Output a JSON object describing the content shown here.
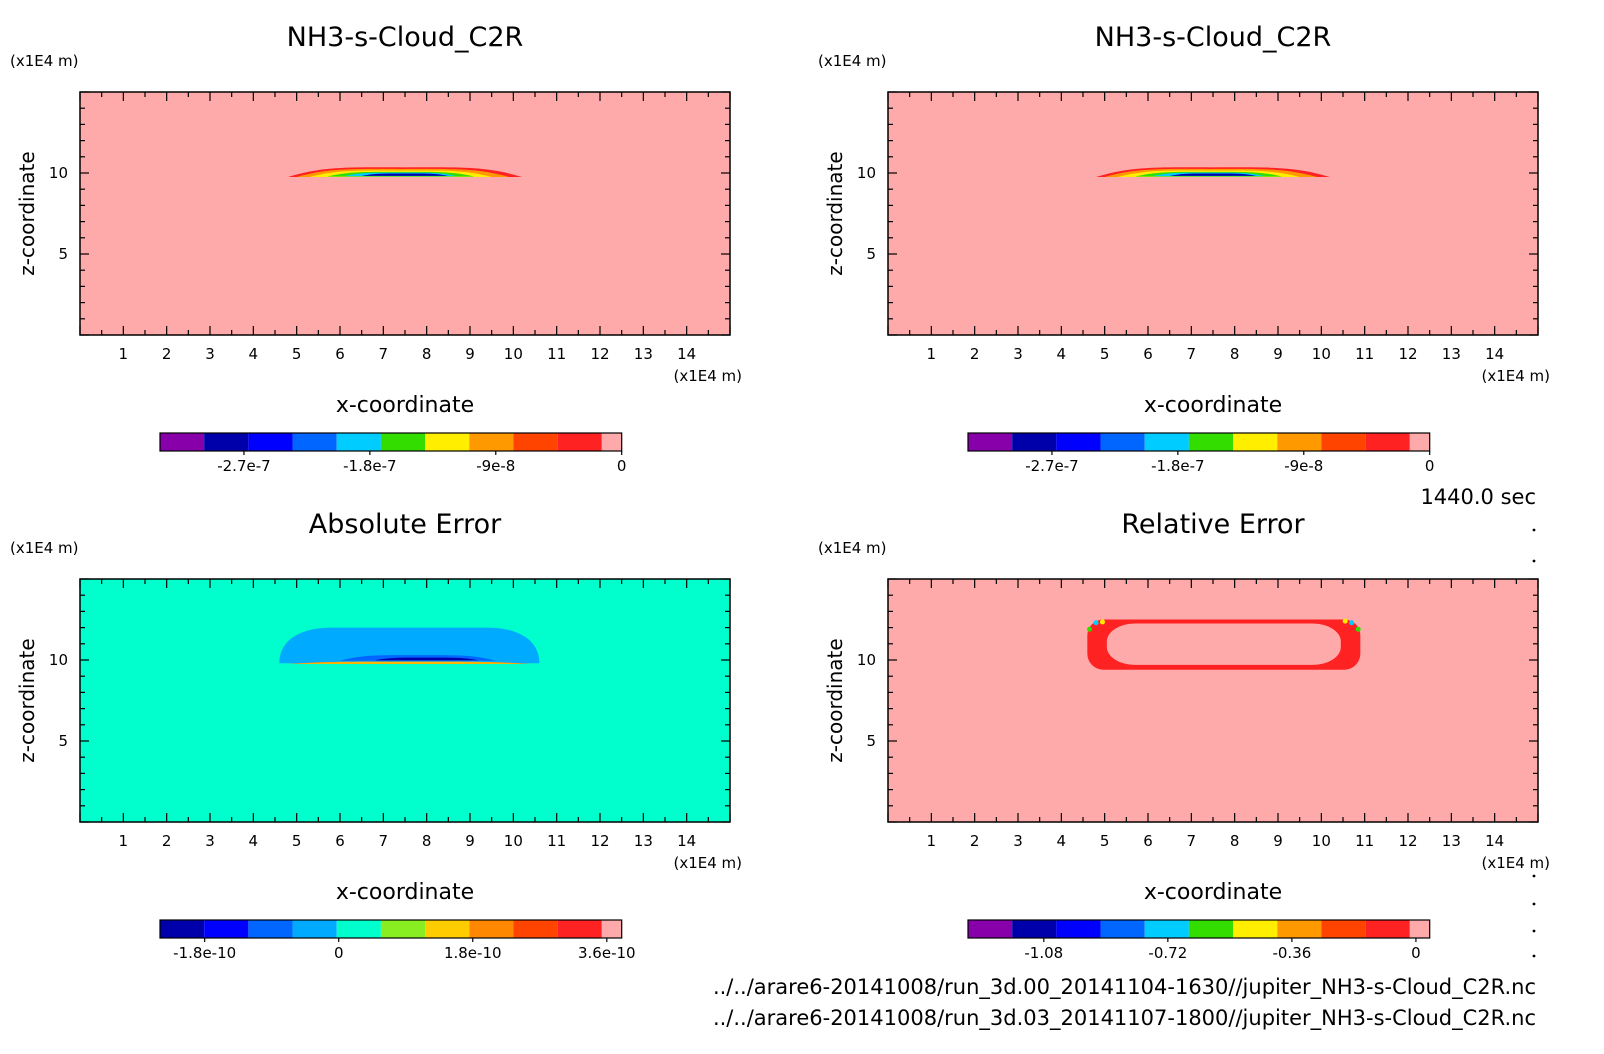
{
  "time_label": "1440.0 sec",
  "files": [
    "../../arare6-20141008/run_3d.00_20141104-1630//jupiter_NH3-s-Cloud_C2R.nc",
    "../../arare6-20141008/run_3d.03_20141107-1800//jupiter_NH3-s-Cloud_C2R.nc"
  ],
  "chart_data": [
    {
      "type": "heatmap",
      "title": "NH3-s-Cloud_C2R",
      "xlabel": "x-coordinate",
      "ylabel": "z-coordinate",
      "x_unit": "(x1E4 m)",
      "y_unit": "(x1E4 m)",
      "xlim": [
        0,
        15
      ],
      "ylim": [
        0,
        15
      ],
      "xticks": [
        1,
        2,
        3,
        4,
        5,
        6,
        7,
        8,
        9,
        10,
        11,
        12,
        13,
        14
      ],
      "yticks": [
        5,
        10
      ],
      "background_color": "#ffaaaa",
      "colorbar": {
        "colors": [
          "#8800aa",
          "#0000aa",
          "#0000ff",
          "#0066ff",
          "#00ccff",
          "#33dd00",
          "#ffee00",
          "#ff9900",
          "#ff4400",
          "#ff2222",
          "#ffaaaa"
        ],
        "ticks": [
          {
            "value": -2.7e-07,
            "label": "-2.7e-7"
          },
          {
            "value": -1.8e-07,
            "label": "-1.8e-7"
          },
          {
            "value": -9e-08,
            "label": "-9e-8"
          },
          {
            "value": 0,
            "label": "0"
          }
        ],
        "range": [
          -3.3e-07,
          0
        ]
      },
      "features": [
        {
          "kind": "band",
          "x": [
            4.8,
            10.2
          ],
          "z": [
            9.75,
            10.35
          ],
          "color": "#ff2222"
        },
        {
          "kind": "band",
          "x": [
            5.0,
            9.9
          ],
          "z": [
            9.75,
            10.25
          ],
          "color": "#ff9900"
        },
        {
          "kind": "band",
          "x": [
            5.3,
            9.5
          ],
          "z": [
            9.75,
            10.15
          ],
          "color": "#ffee00"
        },
        {
          "kind": "band",
          "x": [
            5.7,
            9.1
          ],
          "z": [
            9.78,
            10.07
          ],
          "color": "#33dd00"
        },
        {
          "kind": "band",
          "x": [
            6.1,
            8.7
          ],
          "z": [
            9.8,
            10.02
          ],
          "color": "#00ccff"
        },
        {
          "kind": "band",
          "x": [
            6.5,
            8.5
          ],
          "z": [
            9.82,
            9.97
          ],
          "color": "#0000aa"
        }
      ]
    },
    {
      "type": "heatmap",
      "title": "NH3-s-Cloud_C2R",
      "xlabel": "x-coordinate",
      "ylabel": "z-coordinate",
      "x_unit": "(x1E4 m)",
      "y_unit": "(x1E4 m)",
      "xlim": [
        0,
        15
      ],
      "ylim": [
        0,
        15
      ],
      "xticks": [
        1,
        2,
        3,
        4,
        5,
        6,
        7,
        8,
        9,
        10,
        11,
        12,
        13,
        14
      ],
      "yticks": [
        5,
        10
      ],
      "background_color": "#ffaaaa",
      "colorbar": {
        "colors": [
          "#8800aa",
          "#0000aa",
          "#0000ff",
          "#0066ff",
          "#00ccff",
          "#33dd00",
          "#ffee00",
          "#ff9900",
          "#ff4400",
          "#ff2222",
          "#ffaaaa"
        ],
        "ticks": [
          {
            "value": -2.7e-07,
            "label": "-2.7e-7"
          },
          {
            "value": -1.8e-07,
            "label": "-1.8e-7"
          },
          {
            "value": -9e-08,
            "label": "-9e-8"
          },
          {
            "value": 0,
            "label": "0"
          }
        ],
        "range": [
          -3.3e-07,
          0
        ]
      },
      "features": [
        {
          "kind": "band",
          "x": [
            4.8,
            10.2
          ],
          "z": [
            9.75,
            10.35
          ],
          "color": "#ff2222"
        },
        {
          "kind": "band",
          "x": [
            5.0,
            9.9
          ],
          "z": [
            9.75,
            10.25
          ],
          "color": "#ff9900"
        },
        {
          "kind": "band",
          "x": [
            5.3,
            9.5
          ],
          "z": [
            9.75,
            10.15
          ],
          "color": "#ffee00"
        },
        {
          "kind": "band",
          "x": [
            5.7,
            9.1
          ],
          "z": [
            9.78,
            10.07
          ],
          "color": "#33dd00"
        },
        {
          "kind": "band",
          "x": [
            6.1,
            8.7
          ],
          "z": [
            9.8,
            10.02
          ],
          "color": "#00ccff"
        },
        {
          "kind": "band",
          "x": [
            6.5,
            8.5
          ],
          "z": [
            9.82,
            9.97
          ],
          "color": "#0000aa"
        }
      ]
    },
    {
      "type": "heatmap",
      "title": "Absolute Error",
      "xlabel": "x-coordinate",
      "ylabel": "z-coordinate",
      "x_unit": "(x1E4 m)",
      "y_unit": "(x1E4 m)",
      "xlim": [
        0,
        15
      ],
      "ylim": [
        0,
        15
      ],
      "xticks": [
        1,
        2,
        3,
        4,
        5,
        6,
        7,
        8,
        9,
        10,
        11,
        12,
        13,
        14
      ],
      "yticks": [
        5,
        10
      ],
      "background_color": "#00ffcc",
      "colorbar": {
        "colors": [
          "#0000aa",
          "#0000ff",
          "#0066ff",
          "#00aaff",
          "#00ffcc",
          "#88ee22",
          "#ffcc00",
          "#ff8800",
          "#ff4400",
          "#ff2222",
          "#ffaaaa"
        ],
        "ticks": [
          {
            "value": -1.8e-10,
            "label": "-1.8e-10"
          },
          {
            "value": 0,
            "label": "0"
          },
          {
            "value": 1.8e-10,
            "label": "1.8e-10"
          },
          {
            "value": 3.6e-10,
            "label": "3.6e-10"
          }
        ],
        "range": [
          -2.4e-10,
          3.8e-10
        ]
      },
      "features": [
        {
          "kind": "dome",
          "x": [
            4.6,
            10.6
          ],
          "z": [
            9.8,
            12.0
          ],
          "color": "#00aaff"
        },
        {
          "kind": "band",
          "x": [
            6.0,
            9.6
          ],
          "z": [
            9.95,
            10.3
          ],
          "color": "#0066ff"
        },
        {
          "kind": "band",
          "x": [
            6.8,
            9.2
          ],
          "z": [
            9.98,
            10.15
          ],
          "color": "#0000aa"
        },
        {
          "kind": "band",
          "x": [
            4.8,
            10.4
          ],
          "z": [
            9.75,
            9.9
          ],
          "color": "#ff8800"
        },
        {
          "kind": "band",
          "x": [
            5.0,
            10.2
          ],
          "z": [
            9.78,
            9.86
          ],
          "color": "#ffcc00"
        }
      ]
    },
    {
      "type": "heatmap",
      "title": "Relative Error",
      "xlabel": "x-coordinate",
      "ylabel": "z-coordinate",
      "x_unit": "(x1E4 m)",
      "y_unit": "(x1E4 m)",
      "xlim": [
        0,
        15
      ],
      "ylim": [
        0,
        15
      ],
      "xticks": [
        1,
        2,
        3,
        4,
        5,
        6,
        7,
        8,
        9,
        10,
        11,
        12,
        13,
        14
      ],
      "yticks": [
        5,
        10
      ],
      "background_color": "#ffaaaa",
      "colorbar": {
        "colors": [
          "#8800aa",
          "#0000aa",
          "#0000ff",
          "#0066ff",
          "#00ccff",
          "#33dd00",
          "#ffee00",
          "#ff9900",
          "#ff4400",
          "#ff2222",
          "#ffaaaa"
        ],
        "ticks": [
          {
            "value": -1.08,
            "label": "-1.08"
          },
          {
            "value": -0.72,
            "label": "-0.72"
          },
          {
            "value": -0.36,
            "label": "-0.36"
          },
          {
            "value": 0,
            "label": "0"
          }
        ],
        "range": [
          -1.3,
          0.04
        ]
      },
      "features": [
        {
          "kind": "ring",
          "x": [
            4.6,
            10.9
          ],
          "z": [
            9.4,
            12.5
          ],
          "color": "#ff2222"
        }
      ]
    }
  ]
}
